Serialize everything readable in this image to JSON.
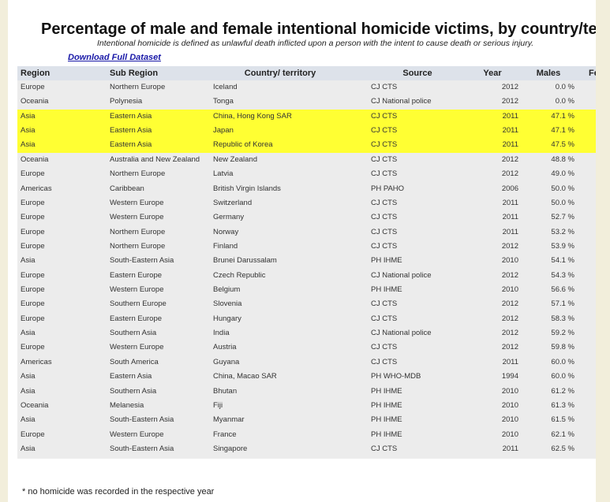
{
  "header": {
    "title": "Percentage of male and female intentional homicide victims, by country/territo",
    "subtitle": "Intentional homicide is defined as unlawful death inflicted upon a person with the intent to cause death or serious injury.",
    "link": "Download Full Dataset"
  },
  "table": {
    "columns": [
      "Region",
      "Sub Region",
      "Country/ territory",
      "Source",
      "Year",
      "Males",
      "Fe"
    ],
    "highlighted_rows": [
      2,
      3,
      4
    ],
    "rows": [
      [
        "Europe",
        "Northern Europe",
        "Iceland",
        "CJ CTS",
        "2012",
        "0.0 %"
      ],
      [
        "Oceania",
        "Polynesia",
        "Tonga",
        "CJ National police",
        "2012",
        "0.0 %"
      ],
      [
        "Asia",
        "Eastern Asia",
        "China, Hong Kong SAR",
        "CJ CTS",
        "2011",
        "47.1 %"
      ],
      [
        "Asia",
        "Eastern Asia",
        "Japan",
        "CJ CTS",
        "2011",
        "47.1 %"
      ],
      [
        "Asia",
        "Eastern Asia",
        "Republic of Korea",
        "CJ CTS",
        "2011",
        "47.5 %"
      ],
      [
        "Oceania",
        "Australia and New Zealand",
        "New Zealand",
        "CJ CTS",
        "2012",
        "48.8 %"
      ],
      [
        "Europe",
        "Northern Europe",
        "Latvia",
        "CJ CTS",
        "2012",
        "49.0 %"
      ],
      [
        "Americas",
        "Caribbean",
        "British Virgin Islands",
        "PH PAHO",
        "2006",
        "50.0 %"
      ],
      [
        "Europe",
        "Western Europe",
        "Switzerland",
        "CJ CTS",
        "2011",
        "50.0 %"
      ],
      [
        "Europe",
        "Western Europe",
        "Germany",
        "CJ CTS",
        "2011",
        "52.7 %"
      ],
      [
        "Europe",
        "Northern Europe",
        "Norway",
        "CJ CTS",
        "2011",
        "53.2 %"
      ],
      [
        "Europe",
        "Northern Europe",
        "Finland",
        "CJ CTS",
        "2012",
        "53.9 %"
      ],
      [
        "Asia",
        "South-Eastern Asia",
        "Brunei Darussalam",
        "PH IHME",
        "2010",
        "54.1 %"
      ],
      [
        "Europe",
        "Eastern Europe",
        "Czech Republic",
        "CJ National police",
        "2012",
        "54.3 %"
      ],
      [
        "Europe",
        "Western Europe",
        "Belgium",
        "PH IHME",
        "2010",
        "56.6 %"
      ],
      [
        "Europe",
        "Southern Europe",
        "Slovenia",
        "CJ CTS",
        "2012",
        "57.1 %"
      ],
      [
        "Europe",
        "Eastern Europe",
        "Hungary",
        "CJ CTS",
        "2012",
        "58.3 %"
      ],
      [
        "Asia",
        "Southern Asia",
        "India",
        "CJ National police",
        "2012",
        "59.2 %"
      ],
      [
        "Europe",
        "Western Europe",
        "Austria",
        "CJ CTS",
        "2012",
        "59.8 %"
      ],
      [
        "Americas",
        "South America",
        "Guyana",
        "CJ CTS",
        "2011",
        "60.0 %"
      ],
      [
        "Asia",
        "Eastern Asia",
        "China, Macao SAR",
        "PH WHO-MDB",
        "1994",
        "60.0 %"
      ],
      [
        "Asia",
        "Southern Asia",
        "Bhutan",
        "PH IHME",
        "2010",
        "61.2 %"
      ],
      [
        "Oceania",
        "Melanesia",
        "Fiji",
        "PH IHME",
        "2010",
        "61.3 %"
      ],
      [
        "Asia",
        "South-Eastern Asia",
        "Myanmar",
        "PH IHME",
        "2010",
        "61.5 %"
      ],
      [
        "Europe",
        "Western Europe",
        "France",
        "PH IHME",
        "2010",
        "62.1 %"
      ],
      [
        "Asia",
        "South-Eastern Asia",
        "Singapore",
        "CJ CTS",
        "2011",
        "62.5 %"
      ]
    ]
  },
  "footnote": "* no homicide was recorded in the respective year"
}
